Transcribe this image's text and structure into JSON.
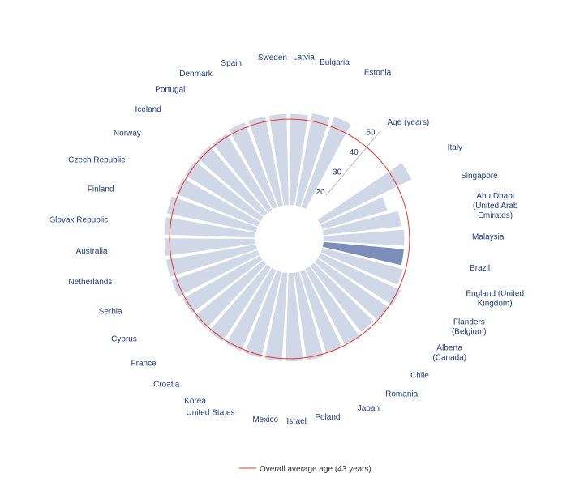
{
  "chart_data": {
    "type": "bar",
    "layout": "radial",
    "title": "",
    "axis_label": "Age (years)",
    "axis_ticks": [
      20,
      30,
      40,
      50
    ],
    "ylim": [
      10,
      53
    ],
    "reference_line": {
      "label": "Overall average age (43 years)",
      "value": 43,
      "color": "#e8392c"
    },
    "bar_color": "#d0d7e6",
    "highlight_color": "#7b8db8",
    "highlight_category": "Brazil",
    "categories": [
      "Italy",
      "Singapore",
      "Abu Dhabi (United Arab Emirates)",
      "Malaysia",
      "Brazil",
      "England (United Kingdom)",
      "Flanders (Belgium)",
      "Alberta (Canada)",
      "Chile",
      "Romania",
      "Japan",
      "Poland",
      "Israel",
      "Mexico",
      "United States",
      "Korea",
      "Croatia",
      "France",
      "Cyprus",
      "Serbia",
      "Netherlands",
      "Australia",
      "Slovak Republic",
      "Finland",
      "Czech Republic",
      "Norway",
      "Iceland",
      "Portugal",
      "Denmark",
      "Spain",
      "Sweden",
      "Latvia",
      "Bulgaria",
      "Estonia"
    ],
    "values": [
      49,
      36,
      40,
      41,
      41,
      42,
      44,
      43,
      42,
      43,
      43,
      44,
      44,
      44,
      44,
      44,
      44,
      44,
      44,
      45,
      45,
      45,
      45,
      45,
      44,
      44,
      44,
      44,
      45,
      45,
      45,
      45,
      46,
      47
    ]
  }
}
